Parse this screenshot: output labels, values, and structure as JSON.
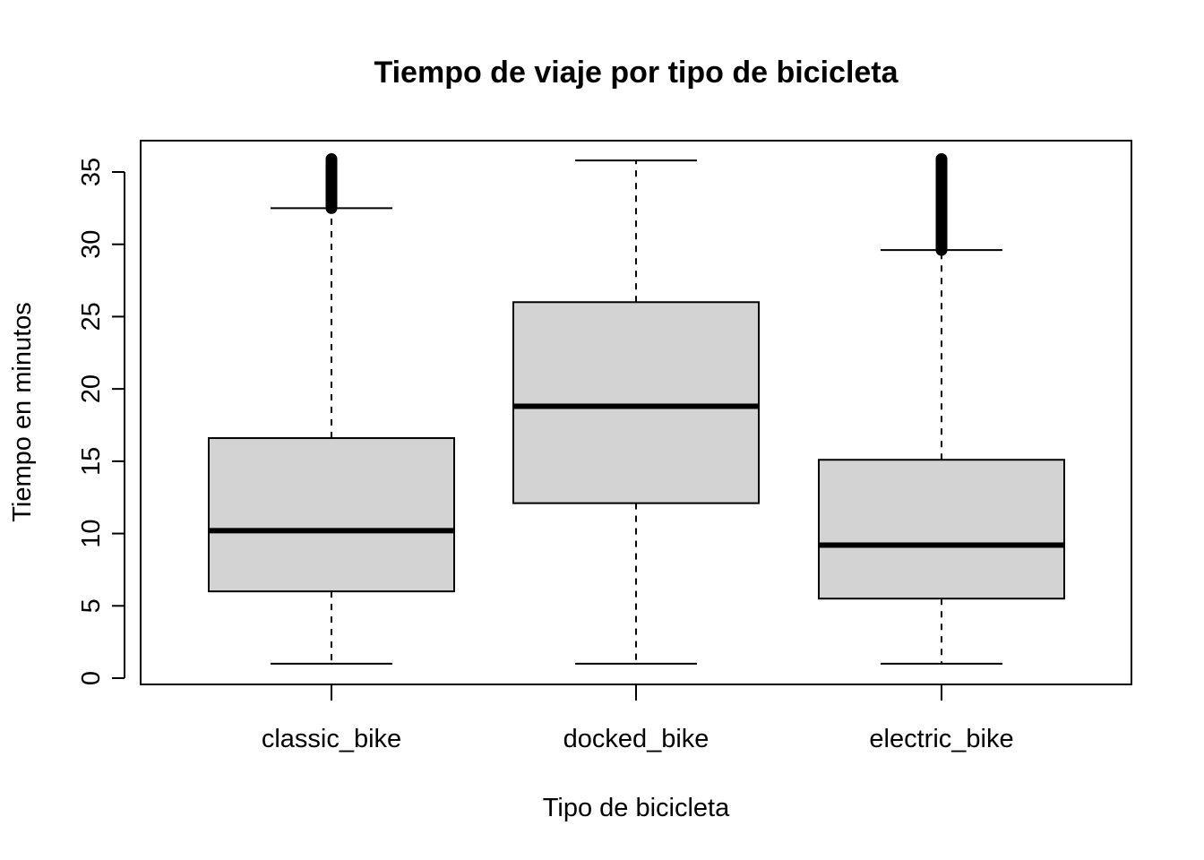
{
  "chart_data": {
    "type": "boxplot",
    "title": "Tiempo de viaje por tipo de bicicleta",
    "xlabel": "Tipo de bicicleta",
    "ylabel": "Tiempo en minutos",
    "ylim": [
      0,
      37
    ],
    "yticks": [
      0,
      5,
      10,
      15,
      20,
      25,
      30,
      35
    ],
    "grid": false,
    "legend": "none",
    "box_fill": "#d3d3d3",
    "categories": [
      "classic_bike",
      "docked_bike",
      "electric_bike"
    ],
    "boxes": [
      {
        "category": "classic_bike",
        "whisker_low": 1.0,
        "q1": 6.0,
        "median": 10.2,
        "q3": 16.6,
        "whisker_high": 32.5,
        "outliers_from": 32.5,
        "outliers_to": 35.9
      },
      {
        "category": "docked_bike",
        "whisker_low": 1.0,
        "q1": 12.1,
        "median": 18.8,
        "q3": 26.0,
        "whisker_high": 35.8,
        "outliers_from": null,
        "outliers_to": null
      },
      {
        "category": "electric_bike",
        "whisker_low": 1.0,
        "q1": 5.5,
        "median": 9.2,
        "q3": 15.1,
        "whisker_high": 29.6,
        "outliers_from": 29.6,
        "outliers_to": 35.9
      }
    ]
  }
}
